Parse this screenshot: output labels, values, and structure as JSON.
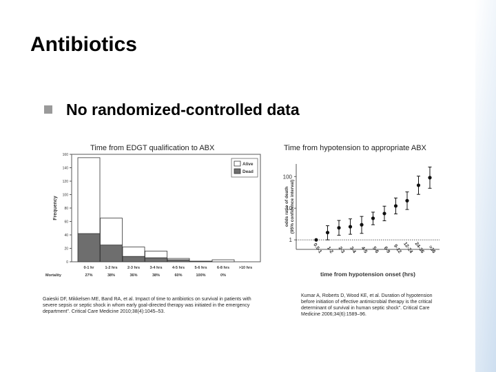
{
  "slide": {
    "title": "Antibiotics",
    "bullet": "No randomized-controlled data"
  },
  "colors": {
    "alive": "#ffffff",
    "dead": "#6e6e6e",
    "bar_stroke": "#333333",
    "marker": "#111111"
  },
  "left_chart": {
    "caption": "Time from EDGT qualification to ABX",
    "citation": "Gaieski DF, Mikkelsen ME, Band RA, et al. Impact of time to antibiotics on survival in patients with severe sepsis or septic shock in whom early goal-directed therapy was initiated in the emergency department\". Critical Care Medicine 2010;38(4):1045–53."
  },
  "right_chart": {
    "caption": "Time from hypotension to appropriate ABX",
    "citation": "Kumar A, Roberts D, Wood KE, et al. Duration of hypotension before initiation of effective antimicrobial therapy is the critical determinant of survival in human septic shock\". Critical Care Medicine 2006;34(6):1589–96."
  },
  "chart_data": [
    {
      "type": "bar",
      "stacked": true,
      "title": "Time from EDGT qualification to ABX",
      "xlabel": "",
      "ylabel": "Frequency",
      "ylim": [
        0,
        160
      ],
      "yticks": [
        0,
        20,
        40,
        60,
        80,
        100,
        120,
        140,
        160
      ],
      "categories": [
        "0-1 hr",
        "1-2 hrs",
        "2-3 hrs",
        "3-4 hrs",
        "4-5 hrs",
        "5-6 hrs",
        "6-8 hrs",
        ">10 hrs"
      ],
      "series": [
        {
          "name": "Dead",
          "values": [
            42,
            25,
            8,
            6,
            3,
            1,
            0,
            0
          ]
        },
        {
          "name": "Alive",
          "values": [
            113,
            40,
            14,
            10,
            2,
            0,
            3,
            0
          ]
        }
      ],
      "legend": [
        "Alive",
        "Dead"
      ],
      "legend_position": "top-right",
      "mortality_label": "Mortality",
      "mortality": [
        "27%",
        "38%",
        "36%",
        "38%",
        "60%",
        "100%",
        "0%",
        ""
      ]
    },
    {
      "type": "scatter",
      "title": "Time from hypotension to appropriate ABX",
      "xlabel": "time from hypotension onset (hrs)",
      "ylabel": "odds ratio of death (95% confidence interval)",
      "yscale": "log",
      "ylim": [
        0.5,
        250
      ],
      "yticks": [
        1,
        10,
        100
      ],
      "reference_line": 1,
      "categories": [
        "0.5-1",
        "1-2",
        "2-3",
        "3-4",
        "4-5",
        "5-6",
        "6-9",
        "9-12",
        "12-24",
        "24-36",
        ">36"
      ],
      "values": [
        1.0,
        1.7,
        2.4,
        2.6,
        3.0,
        4.8,
        6.8,
        11.8,
        17.3,
        53.1,
        92.3
      ],
      "ci_lower": [
        null,
        1.0,
        1.4,
        1.5,
        1.6,
        3.0,
        4.0,
        6.6,
        9.1,
        27.3,
        42.6
      ],
      "ci_upper": [
        null,
        2.8,
        4.1,
        4.6,
        5.5,
        7.5,
        11.6,
        21.0,
        32.7,
        103.1,
        200.0
      ],
      "xtick_labels": [
        "0.5-1",
        "1-2",
        "2-3",
        "3-4",
        "4-5",
        "5-6",
        "6-9",
        "9-12",
        "12-24",
        "24-36",
        ">36"
      ]
    }
  ]
}
